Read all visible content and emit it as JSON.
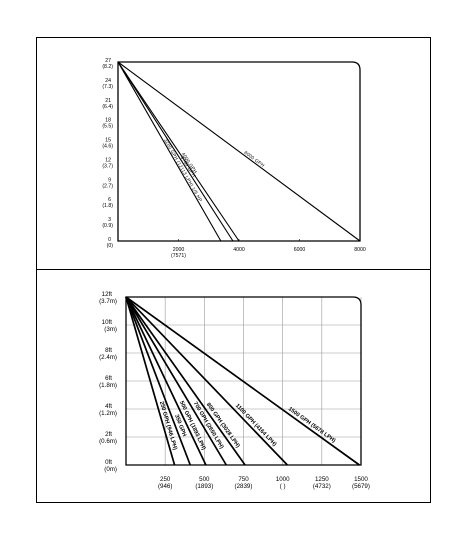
{
  "chart_data": [
    {
      "type": "line",
      "ylim": [
        0,
        27
      ],
      "xlim": [
        0,
        8000
      ],
      "y_ticks": [
        {
          "value": 27,
          "label": "27",
          "sub": "(8.2)"
        },
        {
          "value": 24,
          "label": "24",
          "sub": "(7.3)"
        },
        {
          "value": 21,
          "label": "21",
          "sub": "(6.4)"
        },
        {
          "value": 18,
          "label": "18",
          "sub": "(5.5)"
        },
        {
          "value": 15,
          "label": "15",
          "sub": "(4.6)"
        },
        {
          "value": 12,
          "label": "12",
          "sub": "(3.7)"
        },
        {
          "value": 9,
          "label": "9",
          "sub": "(2.7)"
        },
        {
          "value": 6,
          "label": "6",
          "sub": "(1.8)"
        },
        {
          "value": 3,
          "label": "3",
          "sub": "(0.9)"
        },
        {
          "value": 0,
          "label": "0",
          "sub": "(0)"
        }
      ],
      "x_ticks": [
        {
          "value": 2000,
          "label": "2000",
          "sub": "(7571)"
        },
        {
          "value": 4000,
          "label": "4000",
          "sub": ""
        },
        {
          "value": 6000,
          "label": "6000",
          "sub": ""
        },
        {
          "value": 8000,
          "label": "8000",
          "sub": ""
        }
      ],
      "series": [
        {
          "name": "3200 GPH (12113 LPH) 1/6 HP",
          "x": [
            0,
            3400
          ],
          "y": [
            27,
            0
          ]
        },
        {
          "name": "3700 GPH",
          "x": [
            0,
            3800
          ],
          "y": [
            27,
            0
          ]
        },
        {
          "name": "4000 GPH",
          "x": [
            0,
            4000
          ],
          "y": [
            27,
            0
          ]
        },
        {
          "name": "8000 GPH",
          "x": [
            0,
            8000
          ],
          "y": [
            27,
            0
          ]
        }
      ],
      "grid": false
    },
    {
      "type": "line",
      "ylim": [
        0,
        12
      ],
      "xlim": [
        0,
        1500
      ],
      "y_ticks": [
        {
          "value": 12,
          "label": "12ft",
          "sub": "(3.7m)"
        },
        {
          "value": 10,
          "label": "10ft",
          "sub": "(3m)"
        },
        {
          "value": 8,
          "label": "8ft",
          "sub": "(2.4m)"
        },
        {
          "value": 6,
          "label": "6ft",
          "sub": "(1.8m)"
        },
        {
          "value": 4,
          "label": "4ft",
          "sub": "(1.2m)"
        },
        {
          "value": 2,
          "label": "2ft",
          "sub": "(0.6m)"
        },
        {
          "value": 0,
          "label": "0ft",
          "sub": "(0m)"
        }
      ],
      "x_ticks": [
        {
          "value": 250,
          "label": "250",
          "sub": "(946)"
        },
        {
          "value": 500,
          "label": "500",
          "sub": "(1893)"
        },
        {
          "value": 750,
          "label": "750",
          "sub": "(2839)"
        },
        {
          "value": 1000,
          "label": "1000",
          "sub": "( )"
        },
        {
          "value": 1250,
          "label": "1250",
          "sub": "(4732)"
        },
        {
          "value": 1500,
          "label": "1500",
          "sub": "(5679)"
        }
      ],
      "series": [
        {
          "name": "250 GPH (946 LPH)",
          "x": [
            0,
            310
          ],
          "y": [
            12,
            0
          ]
        },
        {
          "name": "350 GPH",
          "x": [
            0,
            410
          ],
          "y": [
            12,
            0
          ]
        },
        {
          "name": "500 GPH (1893 LPH)",
          "x": [
            0,
            510
          ],
          "y": [
            12,
            0
          ]
        },
        {
          "name": "700 GPH (2650 LPH)",
          "x": [
            0,
            640
          ],
          "y": [
            12,
            0
          ]
        },
        {
          "name": "800 GPH (3028 LPH)",
          "x": [
            0,
            760
          ],
          "y": [
            12,
            0
          ]
        },
        {
          "name": "1100 GPH (4164 LPH)",
          "x": [
            0,
            1030
          ],
          "y": [
            12,
            0
          ]
        },
        {
          "name": "1500 GPH (5678 LPH)",
          "x": [
            0,
            1490
          ],
          "y": [
            12,
            0
          ]
        }
      ],
      "grid": true
    }
  ]
}
